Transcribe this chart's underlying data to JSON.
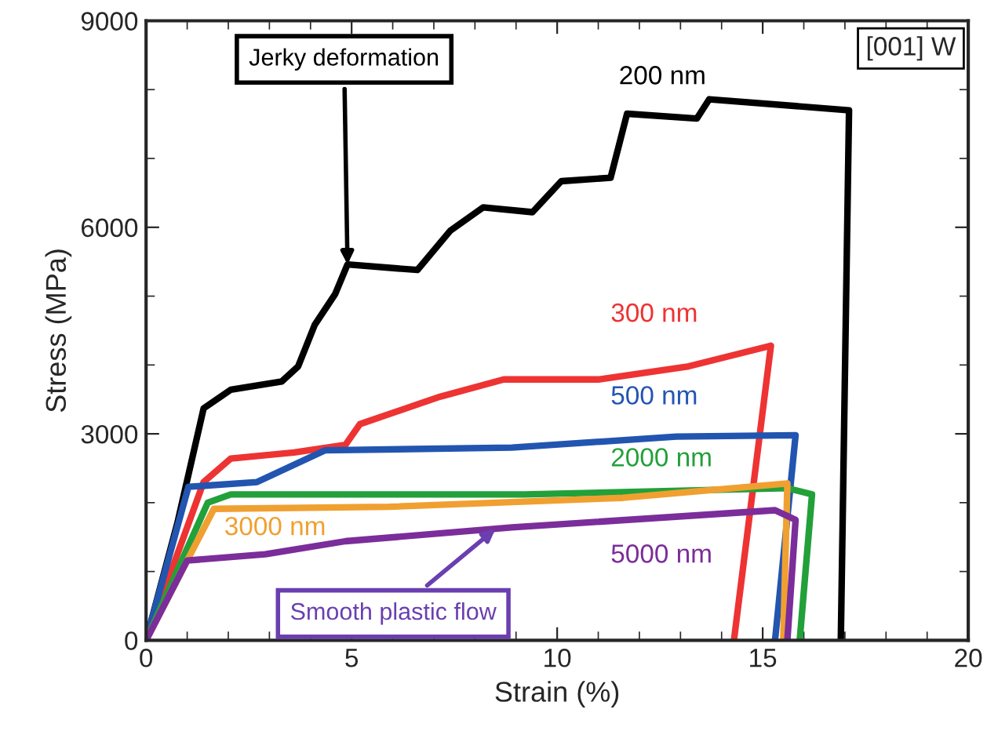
{
  "chart_data": {
    "type": "line",
    "xlabel": "Strain (%)",
    "ylabel": "Stress (MPa)",
    "xlim": [
      0,
      20
    ],
    "xticks": [
      0,
      5,
      10,
      15,
      20
    ],
    "ylim": [
      0,
      9000
    ],
    "yticks": [
      0,
      3000,
      6000,
      9000
    ],
    "grid": false,
    "legend": false,
    "marker": "none",
    "line_style": "solid",
    "series": [
      {
        "name": "200 nm",
        "color": "#000000",
        "x": [
          0,
          0.76,
          1.4,
          2.06,
          3.3,
          3.7,
          4.1,
          4.6,
          4.9,
          6.6,
          7.4,
          8.2,
          9.4,
          10.1,
          11.3,
          11.7,
          13.4,
          13.7,
          17.1,
          16.9
        ],
        "values": [
          0,
          1700,
          3370,
          3640,
          3760,
          3980,
          4580,
          5030,
          5460,
          5380,
          5950,
          6290,
          6220,
          6670,
          6720,
          7650,
          7580,
          7860,
          7700,
          0
        ]
      },
      {
        "name": "300 nm",
        "color": "#ee3333",
        "x": [
          0,
          1.4,
          2.06,
          3.6,
          4.85,
          5.2,
          7.1,
          8.7,
          11.0,
          13.2,
          15.2,
          14.3
        ],
        "values": [
          0,
          2300,
          2640,
          2730,
          2840,
          3140,
          3530,
          3790,
          3790,
          3980,
          4280,
          0
        ]
      },
      {
        "name": "500 nm",
        "color": "#2255b0",
        "x": [
          0,
          1.03,
          2.7,
          4.35,
          8.9,
          12.9,
          15.8,
          15.3
        ],
        "values": [
          0,
          2230,
          2300,
          2760,
          2800,
          2960,
          2980,
          0
        ]
      },
      {
        "name": "2000 nm",
        "color": "#22a03a",
        "x": [
          0,
          1.5,
          2.06,
          9.2,
          15.6,
          16.2,
          15.9
        ],
        "values": [
          0,
          2000,
          2120,
          2120,
          2210,
          2120,
          0
        ]
      },
      {
        "name": "3000 nm",
        "color": "#f0a030",
        "x": [
          0,
          1.65,
          5.9,
          11.6,
          15.6,
          15.5
        ],
        "values": [
          0,
          1910,
          1940,
          2070,
          2280,
          0
        ]
      },
      {
        "name": "5000 nm",
        "color": "#7b2d9a",
        "x": [
          0,
          1.0,
          2.9,
          4.85,
          8.9,
          15.3,
          15.8,
          15.6
        ],
        "values": [
          0,
          1160,
          1250,
          1440,
          1640,
          1890,
          1750,
          0
        ]
      }
    ],
    "annotations": [
      {
        "text": "Jerky deformation",
        "x": 4.9,
        "y": 5460
      },
      {
        "text": "Smooth plastic flow",
        "x": 8.5,
        "y": 1620
      },
      "[001] W"
    ]
  }
}
